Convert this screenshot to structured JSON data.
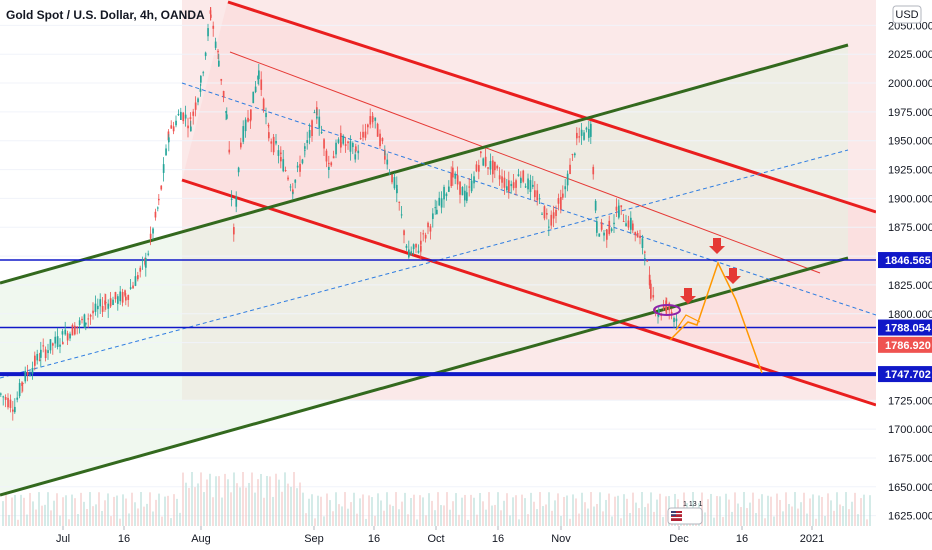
{
  "header": {
    "title": "Gold Spot / U.S. Dollar, 4h, OANDA",
    "currency_button": "USD"
  },
  "colors": {
    "candle_up": "#26a69a",
    "candle_down": "#ef5350",
    "red_channel": "#e91e1e",
    "green_channel": "#33691e",
    "blue_level": "#1018c8",
    "blue_dashed": "#2f7de1",
    "projection": "#ff9800",
    "arrow": "#e53935",
    "price_tag_red": "#ef5350"
  },
  "chart_data": {
    "type": "candlestick",
    "y_axis_ticks": [
      "1625.000",
      "1650.000",
      "1675.000",
      "1700.000",
      "1725.000",
      "1750.000",
      "1775.000",
      "1800.000",
      "1825.000",
      "1850.000",
      "1875.000",
      "1900.000",
      "1925.000",
      "1950.000",
      "1975.000",
      "2000.000",
      "2025.000",
      "2050.000"
    ],
    "y_tick_values": [
      1625,
      1650,
      1675,
      1700,
      1725,
      1750,
      1775,
      1800,
      1825,
      1850,
      1875,
      1900,
      1925,
      1950,
      1975,
      2000,
      2025,
      2050
    ],
    "ylim": [
      1616,
      2072
    ],
    "x_axis_labels": [
      "Jul",
      "16",
      "Aug",
      "Sep",
      "16",
      "Oct",
      "16",
      "Nov",
      "Dec",
      "16",
      "2021"
    ],
    "price_tags": [
      {
        "label": "1846.565",
        "value": 1846.565,
        "style": "blue"
      },
      {
        "label": "1788.054",
        "value": 1788.054,
        "style": "blue"
      },
      {
        "label": "1786.920",
        "value": 1786.92,
        "style": "red"
      },
      {
        "label": "1747.702",
        "value": 1747.702,
        "style": "blue"
      }
    ],
    "horizontal_levels": [
      1846.565,
      1788.054,
      1747.702
    ],
    "price_path": [
      [
        0,
        1730
      ],
      [
        14,
        1720
      ],
      [
        22,
        1742
      ],
      [
        40,
        1765
      ],
      [
        62,
        1780
      ],
      [
        85,
        1795
      ],
      [
        105,
        1810
      ],
      [
        125,
        1815
      ],
      [
        145,
        1845
      ],
      [
        158,
        1895
      ],
      [
        168,
        1955
      ],
      [
        180,
        1975
      ],
      [
        190,
        1965
      ],
      [
        200,
        2000
      ],
      [
        210,
        2060
      ],
      [
        218,
        2020
      ],
      [
        226,
        1970
      ],
      [
        233,
        1870
      ],
      [
        240,
        1950
      ],
      [
        250,
        1975
      ],
      [
        258,
        2010
      ],
      [
        268,
        1955
      ],
      [
        280,
        1935
      ],
      [
        292,
        1910
      ],
      [
        304,
        1940
      ],
      [
        316,
        1975
      ],
      [
        328,
        1930
      ],
      [
        340,
        1950
      ],
      [
        355,
        1940
      ],
      [
        372,
        1970
      ],
      [
        384,
        1940
      ],
      [
        396,
        1905
      ],
      [
        408,
        1850
      ],
      [
        420,
        1860
      ],
      [
        436,
        1890
      ],
      [
        452,
        1920
      ],
      [
        466,
        1900
      ],
      [
        480,
        1935
      ],
      [
        494,
        1925
      ],
      [
        508,
        1910
      ],
      [
        520,
        1920
      ],
      [
        534,
        1905
      ],
      [
        548,
        1880
      ],
      [
        562,
        1900
      ],
      [
        576,
        1950
      ],
      [
        590,
        1960
      ],
      [
        596,
        1875
      ],
      [
        606,
        1870
      ],
      [
        618,
        1890
      ],
      [
        632,
        1875
      ],
      [
        644,
        1855
      ],
      [
        650,
        1820
      ],
      [
        658,
        1800
      ],
      [
        666,
        1808
      ],
      [
        676,
        1795
      ]
    ],
    "volume_note": "volume histogram at bottom",
    "legend": "none"
  },
  "annotations": {
    "event_badge": "1 13  1"
  }
}
